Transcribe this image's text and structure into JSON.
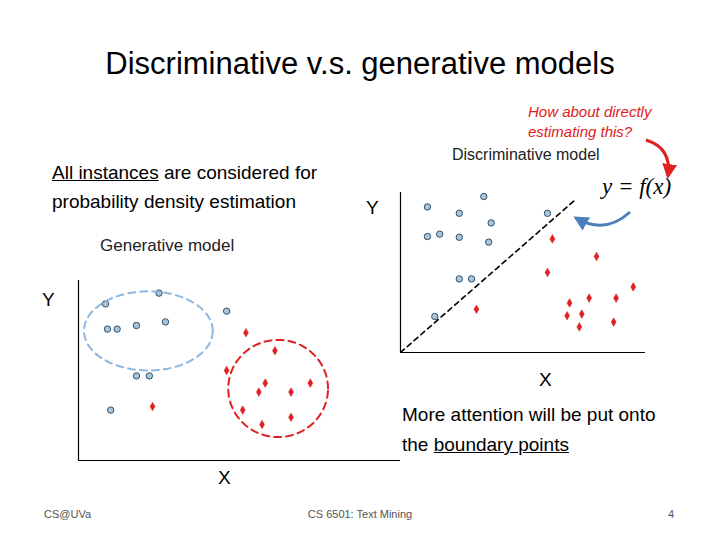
{
  "title": "Discriminative v.s. generative models",
  "question": "How about directly estimating this?",
  "formula": "y = f(x)",
  "generative_note": {
    "text": "All instances are considered for probability density estimation",
    "underlined": "All instances"
  },
  "discriminative_note": {
    "text": "More attention will be put onto the boundary points",
    "underlined": "boundary points"
  },
  "footer": {
    "left": "CS@UVa",
    "center": "CS 6501: Text Mining",
    "page": 4
  },
  "chart_data": [
    {
      "type": "scatter",
      "title": "Generative model",
      "xlabel": "X",
      "ylabel": "Y",
      "xlim": [
        0,
        10
      ],
      "ylim": [
        0,
        10
      ],
      "xticks": [],
      "yticks": [],
      "tick_labels": false,
      "series": [
        {
          "color": "#a9c5dc",
          "marker": "circle",
          "x": [
            0.84,
            2.5,
            0.9,
            1.2,
            1.8,
            2.7,
            4.6,
            1.8,
            2.2,
            1.0
          ],
          "y": [
            8.7,
            9.3,
            7.3,
            7.3,
            7.5,
            7.7,
            8.3,
            4.7,
            4.7,
            2.8
          ],
          "ellipse": {
            "cx": 2.17,
            "cy": 7.2,
            "rx": 2.0,
            "ry": 2.2,
            "color": "#8db6e0"
          }
        },
        {
          "color": "#e02020",
          "marker": "diamond",
          "x": [
            5.2,
            4.6,
            2.3,
            5.1,
            5.6,
            6.1,
            5.8,
            6.6,
            7.2,
            6.6,
            5.7
          ],
          "y": [
            7.1,
            5.0,
            3.0,
            2.8,
            3.8,
            6.1,
            4.3,
            3.8,
            4.3,
            2.4,
            2.0
          ],
          "ellipse": {
            "cx": 6.2,
            "cy": 4.0,
            "rx": 1.55,
            "ry": 2.7,
            "color": "#e02020"
          }
        }
      ]
    },
    {
      "type": "scatter",
      "title": "Discriminative model",
      "xlabel": "X",
      "ylabel": "Y",
      "xlim": [
        0,
        10
      ],
      "ylim": [
        0,
        10
      ],
      "xticks": [],
      "yticks": [],
      "tick_labels": false,
      "series": [
        {
          "color": "#a9c5dc",
          "marker": "circle",
          "x": [
            3.4,
            1.1,
            2.4,
            3.7,
            6.0,
            1.1,
            1.6,
            2.4,
            3.6,
            2.4,
            2.9,
            1.4
          ],
          "y": [
            9.75,
            9.1,
            8.7,
            8.1,
            8.7,
            7.25,
            7.4,
            7.2,
            6.9,
            4.6,
            4.6,
            2.25
          ]
        },
        {
          "color": "#e02020",
          "marker": "diamond",
          "x": [
            6.2,
            8.0,
            6.0,
            9.5,
            8.8,
            7.7,
            6.9,
            3.1,
            7.4,
            8.7,
            6.8,
            7.3
          ],
          "y": [
            7.1,
            6.0,
            5.0,
            4.1,
            3.4,
            3.4,
            3.1,
            2.7,
            2.4,
            1.9,
            2.3,
            1.6
          ]
        },
        {
          "type": "line",
          "color": "#000000",
          "line_style": "dashed",
          "x": [
            0,
            7.1
          ],
          "y": [
            0,
            9.5
          ]
        }
      ]
    }
  ]
}
